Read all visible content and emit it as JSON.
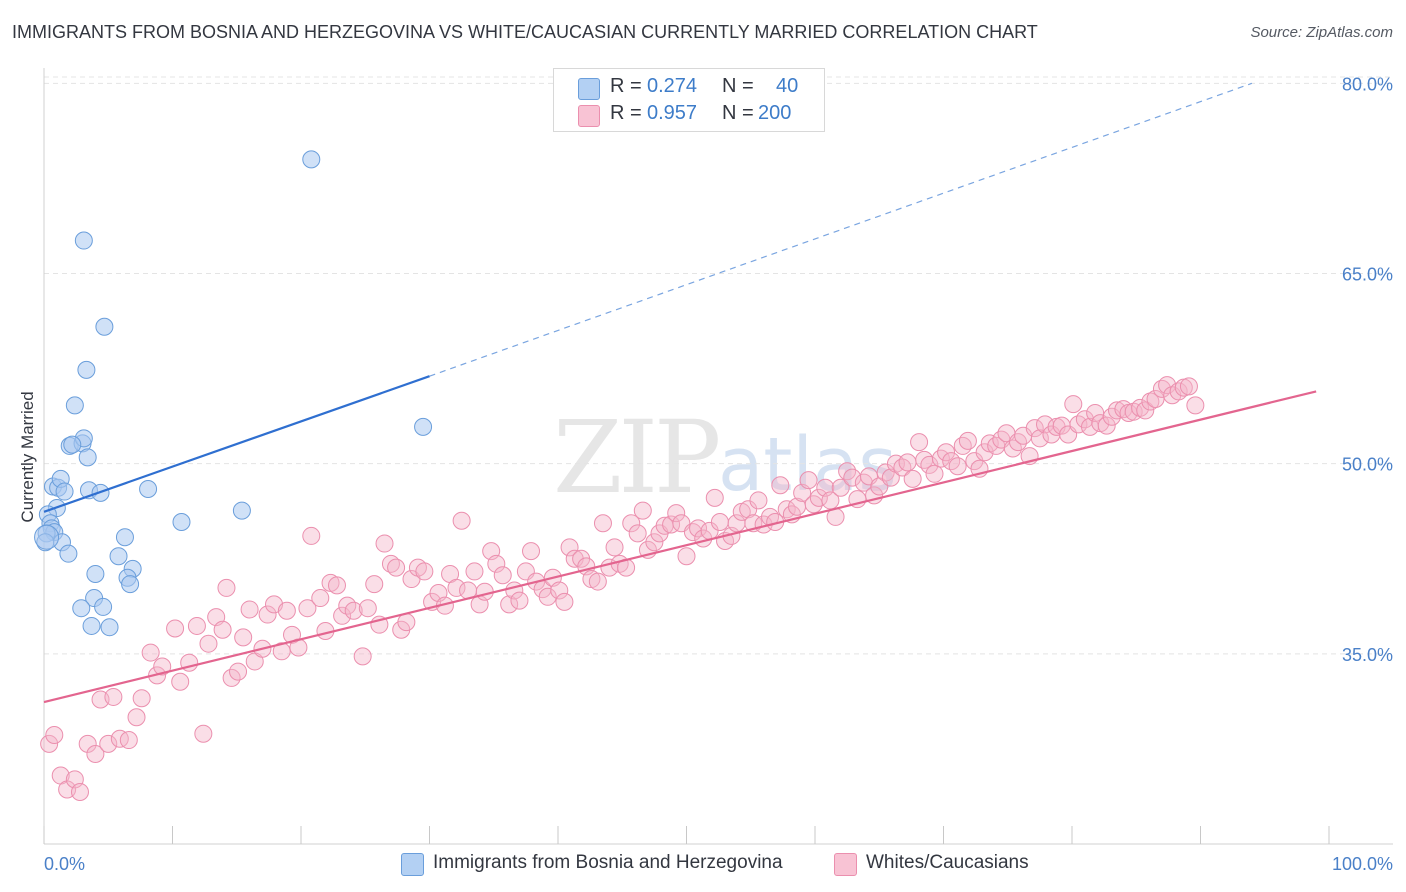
{
  "header": {
    "title": "IMMIGRANTS FROM BOSNIA AND HERZEGOVINA VS WHITE/CAUCASIAN CURRENTLY MARRIED CORRELATION CHART",
    "source": "Source: ZipAtlas.com"
  },
  "legend": {
    "r_label": "R =",
    "n_label": "N =",
    "series": [
      {
        "name": "Immigrants from Bosnia and Herzegovina",
        "r": "0.274",
        "n": "40"
      },
      {
        "name": "Whites/Caucasians",
        "r": "0.957",
        "n": "200"
      }
    ]
  },
  "watermark": {
    "zip": "ZIP",
    "atlas": "atlas"
  },
  "colors": {
    "blue_fill": "#a9c8f0",
    "blue_stroke": "#6a9edb",
    "blue_line": "#2f6fd0",
    "pink_fill": "#f5b6ca",
    "pink_stroke": "#eb8fae",
    "pink_line": "#e3658f",
    "grid": "#e4e4e4",
    "axis_label": "#4a80c8"
  },
  "chart_data": {
    "type": "scatter",
    "title": "IMMIGRANTS FROM BOSNIA AND HERZEGOVINA VS WHITE/CAUCASIAN CURRENTLY MARRIED CORRELATION CHART",
    "xlabel": "",
    "ylabel": "Currently Married",
    "xlim": [
      0,
      105
    ],
    "ylim": [
      20,
      80.5
    ],
    "x_tick_labels": [
      {
        "value": 0,
        "label": "0.0%"
      },
      {
        "value": 100,
        "label": "100.0%"
      }
    ],
    "y_ticks": [
      {
        "value": 35,
        "label": "35.0%"
      },
      {
        "value": 50,
        "label": "50.0%"
      },
      {
        "value": 65,
        "label": "65.0%"
      },
      {
        "value": 80,
        "label": "80.0%"
      }
    ],
    "x_minor_ticks": [
      0,
      10,
      20,
      30,
      40,
      50,
      60,
      70,
      80,
      90,
      100
    ],
    "series": [
      {
        "name": "Immigrants from Bosnia and Herzegovina",
        "r": 0.274,
        "n": 40,
        "trend": {
          "x0": 0,
          "y0": 46.2,
          "x1": 30,
          "y1": 56.9,
          "dash_to_x": 94,
          "dash_to_y": 80
        },
        "points": [
          [
            20.8,
            74.0
          ],
          [
            3.1,
            67.6
          ],
          [
            4.7,
            60.8
          ],
          [
            3.3,
            57.4
          ],
          [
            2.4,
            54.6
          ],
          [
            29.5,
            52.9
          ],
          [
            2.0,
            51.4
          ],
          [
            3.0,
            51.6
          ],
          [
            3.1,
            52.0
          ],
          [
            2.2,
            51.5
          ],
          [
            3.4,
            50.5
          ],
          [
            0.7,
            48.2
          ],
          [
            1.1,
            48.1
          ],
          [
            1.3,
            48.8
          ],
          [
            3.5,
            47.9
          ],
          [
            4.4,
            47.7
          ],
          [
            1.6,
            47.8
          ],
          [
            8.1,
            48.0
          ],
          [
            1.0,
            46.5
          ],
          [
            15.4,
            46.3
          ],
          [
            0.3,
            46.0
          ],
          [
            10.7,
            45.4
          ],
          [
            0.5,
            45.3
          ],
          [
            0.6,
            44.9
          ],
          [
            0.8,
            44.6
          ],
          [
            0.2,
            44.5
          ],
          [
            6.3,
            44.2
          ],
          [
            1.4,
            43.8
          ],
          [
            1.9,
            42.9
          ],
          [
            5.8,
            42.7
          ],
          [
            6.9,
            41.7
          ],
          [
            4.0,
            41.3
          ],
          [
            6.5,
            41.0
          ],
          [
            6.7,
            40.5
          ],
          [
            3.9,
            39.4
          ],
          [
            2.9,
            38.6
          ],
          [
            4.6,
            38.7
          ],
          [
            3.7,
            37.2
          ],
          [
            5.1,
            37.1
          ],
          [
            0.1,
            43.8
          ]
        ]
      },
      {
        "name": "Whites/Caucasians",
        "r": 0.957,
        "n": 200,
        "trend": {
          "x0": 0,
          "y0": 31.2,
          "x1": 99,
          "y1": 55.7
        },
        "points": [
          [
            0.4,
            27.9
          ],
          [
            0.8,
            28.6
          ],
          [
            1.3,
            25.4
          ],
          [
            1.8,
            24.3
          ],
          [
            2.4,
            25.1
          ],
          [
            2.8,
            24.1
          ],
          [
            3.4,
            27.9
          ],
          [
            4.0,
            27.1
          ],
          [
            4.4,
            31.4
          ],
          [
            5.0,
            27.9
          ],
          [
            5.4,
            31.6
          ],
          [
            5.9,
            28.3
          ],
          [
            6.6,
            28.2
          ],
          [
            7.2,
            30.0
          ],
          [
            7.6,
            31.5
          ],
          [
            8.3,
            35.1
          ],
          [
            8.8,
            33.3
          ],
          [
            9.2,
            34.0
          ],
          [
            10.2,
            37.0
          ],
          [
            10.6,
            32.8
          ],
          [
            11.3,
            34.3
          ],
          [
            11.9,
            37.2
          ],
          [
            12.4,
            28.7
          ],
          [
            12.8,
            35.8
          ],
          [
            13.4,
            37.9
          ],
          [
            13.9,
            36.9
          ],
          [
            14.2,
            40.2
          ],
          [
            14.6,
            33.1
          ],
          [
            15.1,
            33.6
          ],
          [
            15.5,
            36.3
          ],
          [
            16.0,
            38.5
          ],
          [
            16.4,
            34.4
          ],
          [
            17.0,
            35.4
          ],
          [
            17.4,
            38.1
          ],
          [
            17.9,
            38.9
          ],
          [
            18.5,
            35.2
          ],
          [
            18.9,
            38.4
          ],
          [
            19.3,
            36.5
          ],
          [
            19.8,
            35.5
          ],
          [
            20.5,
            38.6
          ],
          [
            20.8,
            44.3
          ],
          [
            21.5,
            39.4
          ],
          [
            21.9,
            36.8
          ],
          [
            22.3,
            40.6
          ],
          [
            22.8,
            40.4
          ],
          [
            23.2,
            38.0
          ],
          [
            23.6,
            38.8
          ],
          [
            24.1,
            38.4
          ],
          [
            24.8,
            34.8
          ],
          [
            25.2,
            38.6
          ],
          [
            25.7,
            40.5
          ],
          [
            26.1,
            37.3
          ],
          [
            26.5,
            43.7
          ],
          [
            27.0,
            42.1
          ],
          [
            27.4,
            41.8
          ],
          [
            27.8,
            36.9
          ],
          [
            28.2,
            37.5
          ],
          [
            28.6,
            40.9
          ],
          [
            29.1,
            41.8
          ],
          [
            29.6,
            41.5
          ],
          [
            30.2,
            39.1
          ],
          [
            30.7,
            39.8
          ],
          [
            31.2,
            38.8
          ],
          [
            31.6,
            41.3
          ],
          [
            32.1,
            40.2
          ],
          [
            32.5,
            45.5
          ],
          [
            33.0,
            40.0
          ],
          [
            33.5,
            41.5
          ],
          [
            33.9,
            38.9
          ],
          [
            34.3,
            39.9
          ],
          [
            34.8,
            43.1
          ],
          [
            35.2,
            42.1
          ],
          [
            35.7,
            41.2
          ],
          [
            36.2,
            38.9
          ],
          [
            36.6,
            40.0
          ],
          [
            37.0,
            39.2
          ],
          [
            37.5,
            41.5
          ],
          [
            37.9,
            43.1
          ],
          [
            38.3,
            40.7
          ],
          [
            38.8,
            40.1
          ],
          [
            39.2,
            39.5
          ],
          [
            39.6,
            41.0
          ],
          [
            40.1,
            40.0
          ],
          [
            40.5,
            39.1
          ],
          [
            40.9,
            43.4
          ],
          [
            41.3,
            42.5
          ],
          [
            41.8,
            42.5
          ],
          [
            42.2,
            41.9
          ],
          [
            42.6,
            40.9
          ],
          [
            43.1,
            40.7
          ],
          [
            43.5,
            45.3
          ],
          [
            44.0,
            41.8
          ],
          [
            44.4,
            43.4
          ],
          [
            44.8,
            42.1
          ],
          [
            45.3,
            41.8
          ],
          [
            45.7,
            45.3
          ],
          [
            46.2,
            44.5
          ],
          [
            46.6,
            46.3
          ],
          [
            47.0,
            43.2
          ],
          [
            47.5,
            43.8
          ],
          [
            47.9,
            44.5
          ],
          [
            48.3,
            45.1
          ],
          [
            48.8,
            45.2
          ],
          [
            49.2,
            46.1
          ],
          [
            49.6,
            45.3
          ],
          [
            50.0,
            42.7
          ],
          [
            50.5,
            44.6
          ],
          [
            50.9,
            44.9
          ],
          [
            51.3,
            44.1
          ],
          [
            51.8,
            44.7
          ],
          [
            52.2,
            47.3
          ],
          [
            52.6,
            45.4
          ],
          [
            53.0,
            43.9
          ],
          [
            53.5,
            44.3
          ],
          [
            53.9,
            45.3
          ],
          [
            54.3,
            46.2
          ],
          [
            54.8,
            46.4
          ],
          [
            55.2,
            45.3
          ],
          [
            55.6,
            47.1
          ],
          [
            56.0,
            45.2
          ],
          [
            56.5,
            45.8
          ],
          [
            56.9,
            45.4
          ],
          [
            57.3,
            48.3
          ],
          [
            57.8,
            46.4
          ],
          [
            58.2,
            46.0
          ],
          [
            58.6,
            46.6
          ],
          [
            59.0,
            47.7
          ],
          [
            59.5,
            48.7
          ],
          [
            59.9,
            46.8
          ],
          [
            60.3,
            47.3
          ],
          [
            60.8,
            48.1
          ],
          [
            61.2,
            47.1
          ],
          [
            61.6,
            45.8
          ],
          [
            62.0,
            48.1
          ],
          [
            62.5,
            49.4
          ],
          [
            62.9,
            48.9
          ],
          [
            63.3,
            47.2
          ],
          [
            63.8,
            48.5
          ],
          [
            64.2,
            49.0
          ],
          [
            64.6,
            47.5
          ],
          [
            65.0,
            48.2
          ],
          [
            65.5,
            49.3
          ],
          [
            65.9,
            48.9
          ],
          [
            66.3,
            50.0
          ],
          [
            66.8,
            49.7
          ],
          [
            67.2,
            50.1
          ],
          [
            67.6,
            48.8
          ],
          [
            68.1,
            51.7
          ],
          [
            68.5,
            50.3
          ],
          [
            68.9,
            49.9
          ],
          [
            69.3,
            49.2
          ],
          [
            69.8,
            50.4
          ],
          [
            70.2,
            50.9
          ],
          [
            70.6,
            50.2
          ],
          [
            71.1,
            49.8
          ],
          [
            71.5,
            51.4
          ],
          [
            71.9,
            51.8
          ],
          [
            72.4,
            50.2
          ],
          [
            72.8,
            49.6
          ],
          [
            73.2,
            50.9
          ],
          [
            73.6,
            51.6
          ],
          [
            74.1,
            51.4
          ],
          [
            74.5,
            51.9
          ],
          [
            74.9,
            52.4
          ],
          [
            75.4,
            51.2
          ],
          [
            75.8,
            51.7
          ],
          [
            76.2,
            52.2
          ],
          [
            76.7,
            50.6
          ],
          [
            77.1,
            52.8
          ],
          [
            77.5,
            52.0
          ],
          [
            77.9,
            53.1
          ],
          [
            78.4,
            52.3
          ],
          [
            78.8,
            52.9
          ],
          [
            79.2,
            53.0
          ],
          [
            79.7,
            52.3
          ],
          [
            80.1,
            54.7
          ],
          [
            80.5,
            53.1
          ],
          [
            81.0,
            53.5
          ],
          [
            81.4,
            52.9
          ],
          [
            81.8,
            54.0
          ],
          [
            82.2,
            53.2
          ],
          [
            82.7,
            53.0
          ],
          [
            83.1,
            53.7
          ],
          [
            83.5,
            54.2
          ],
          [
            84.0,
            54.3
          ],
          [
            84.4,
            54.0
          ],
          [
            84.8,
            54.1
          ],
          [
            85.3,
            54.4
          ],
          [
            85.7,
            54.2
          ],
          [
            86.1,
            54.9
          ],
          [
            86.5,
            55.1
          ],
          [
            87.0,
            55.9
          ],
          [
            87.4,
            56.2
          ],
          [
            87.8,
            55.4
          ],
          [
            88.3,
            55.7
          ],
          [
            88.7,
            56.0
          ],
          [
            89.1,
            56.1
          ],
          [
            89.6,
            54.6
          ]
        ]
      }
    ]
  }
}
